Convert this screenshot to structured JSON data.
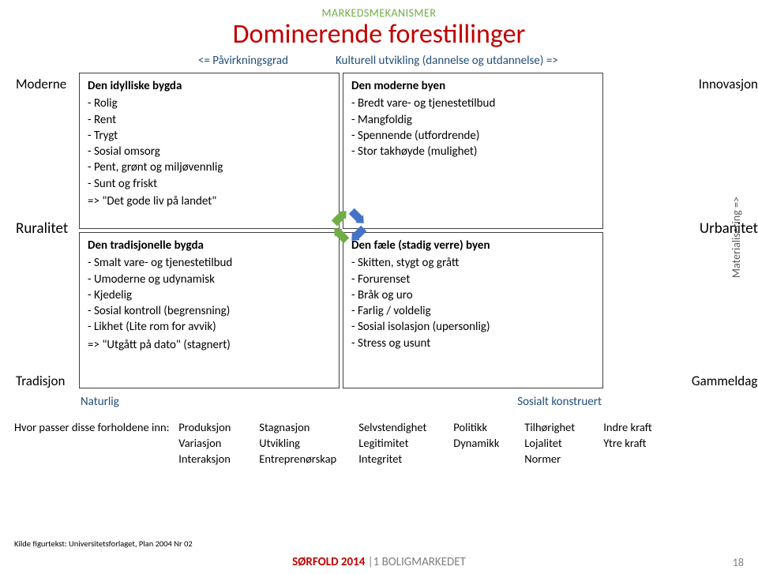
{
  "pretitle": "MARKEDSMEKANISMER",
  "title": "Dominerende forestillinger",
  "axis_top_left": "<= Påvirkningsgrad",
  "axis_top_right": "Kulturell utvikling (dannelse og utdannelse) =>",
  "sidebar_left": {
    "top": "Moderne",
    "mid": "Ruralitet",
    "bot": "Tradisjon"
  },
  "sidebar_right": {
    "top": "Innovasjon",
    "mid": "Urbanitet",
    "bot": "Gammeldags"
  },
  "materialisering": "Materialisering =>",
  "arrows": {
    "fills": [
      "#70ad47",
      "#4472c4",
      "#70ad47",
      "#4472c4"
    ]
  },
  "quad": {
    "tl": {
      "title": "Den idylliske bygda",
      "items": [
        "Rolig",
        "Rent",
        "Trygt",
        "Sosial omsorg",
        "Pent, grønt og miljøvennlig",
        "Sunt og friskt"
      ],
      "sum": "=> \"Det gode liv på landet\""
    },
    "tr": {
      "title": "Den moderne byen",
      "items": [
        "Bredt vare- og tjenestetilbud",
        "Mangfoldig",
        "Spennende (utfordrende)",
        "Stor takhøyde (mulighet)"
      ],
      "sum": ""
    },
    "bl": {
      "title": "Den tradisjonelle bygda",
      "items": [
        "Smalt vare- og tjenestetilbud",
        "Umoderne og udynamisk",
        "Kjedelig",
        "Sosial kontroll (begrensning)",
        "Likhet (Lite rom for avvik)"
      ],
      "sum": "=> \"Utgått på dato\" (stagnert)"
    },
    "br": {
      "title": "Den fæle (stadig verre) byen",
      "items": [
        "Skitten, stygt og grått",
        "Forurenset",
        "Bråk og uro",
        "Farlig / voldelig",
        "Sosial isolasjon (upersonlig)",
        "Stress og usunt"
      ],
      "sum": ""
    }
  },
  "axis_bottom_left": "Naturlig",
  "axis_bottom_right": "Sosialt konstruert",
  "factors_label": "Hvor passer disse forholdene inn:",
  "factors": {
    "r1": [
      "Produksjon",
      "Stagnasjon",
      "Selvstendighet",
      "Politikk",
      "Tilhørighet",
      "Indre kraft"
    ],
    "r2": [
      "Variasjon",
      "Utvikling",
      "Legitimitet",
      "Dynamikk",
      "Lojalitet",
      "Ytre kraft"
    ],
    "r3": [
      "Interaksjon",
      "Entreprenørskap",
      "Integritet",
      "",
      "Normer",
      ""
    ]
  },
  "source": "Kilde figurtekst: Universitetsforlaget, Plan 2004 Nr 02",
  "footer": {
    "main": "SØRFOLD 2014",
    "sub": " |1 BOLIGMARKEDET"
  },
  "page": "18",
  "colors": {
    "title": "#c00000",
    "pretitle": "#70ad47",
    "axis": "#1f4e79",
    "border": "#404040",
    "footer_main": "#c00000",
    "footer_sub": "#7f7f7f"
  }
}
